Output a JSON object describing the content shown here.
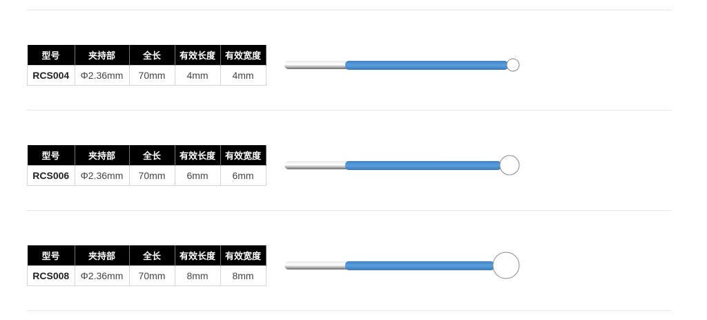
{
  "table_headers": [
    "型号",
    "夹持部",
    "全长",
    "有效长度",
    "有效宽度"
  ],
  "products": [
    {
      "model": "RCS004",
      "clamp": "Φ2.36mm",
      "length": "70mm",
      "effective_length": "4mm",
      "effective_width": "4mm",
      "tip_diameter_mm": 4
    },
    {
      "model": "RCS006",
      "clamp": "Φ2.36mm",
      "length": "70mm",
      "effective_length": "6mm",
      "effective_width": "6mm",
      "tip_diameter_mm": 6
    },
    {
      "model": "RCS008",
      "clamp": "Φ2.36mm",
      "length": "70mm",
      "effective_length": "8mm",
      "effective_width": "8mm",
      "tip_diameter_mm": 8
    }
  ],
  "colors": {
    "shaft_blue": "#4a8fd4",
    "header_bg": "#000000"
  }
}
